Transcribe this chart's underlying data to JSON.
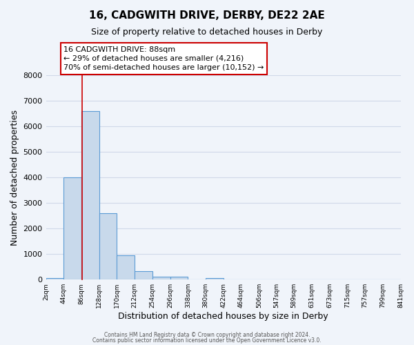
{
  "title": "16, CADGWITH DRIVE, DERBY, DE22 2AE",
  "subtitle": "Size of property relative to detached houses in Derby",
  "xlabel": "Distribution of detached houses by size in Derby",
  "ylabel": "Number of detached properties",
  "bar_values": [
    50,
    4000,
    6600,
    2600,
    950,
    320,
    120,
    120,
    0,
    60,
    0,
    0,
    0,
    0,
    0,
    0,
    0,
    0,
    0,
    0
  ],
  "bin_edges": [
    2,
    44,
    86,
    128,
    170,
    212,
    254,
    296,
    338,
    380,
    422,
    464,
    506,
    547,
    589,
    631,
    673,
    715,
    757,
    799,
    841
  ],
  "tick_labels": [
    "2sqm",
    "44sqm",
    "86sqm",
    "128sqm",
    "170sqm",
    "212sqm",
    "254sqm",
    "296sqm",
    "338sqm",
    "380sqm",
    "422sqm",
    "464sqm",
    "506sqm",
    "547sqm",
    "589sqm",
    "631sqm",
    "673sqm",
    "715sqm",
    "757sqm",
    "799sqm",
    "841sqm"
  ],
  "bar_color": "#c8d9eb",
  "bar_edge_color": "#5b9bd5",
  "property_line_x": 88,
  "ylim": [
    0,
    8000
  ],
  "yticks": [
    0,
    1000,
    2000,
    3000,
    4000,
    5000,
    6000,
    7000,
    8000
  ],
  "annotation_line1": "16 CADGWITH DRIVE: 88sqm",
  "annotation_line2": "← 29% of detached houses are smaller (4,216)",
  "annotation_line3": "70% of semi-detached houses are larger (10,152) →",
  "annotation_box_color": "#ffffff",
  "annotation_box_edge_color": "#cc0000",
  "annotation_line_color": "#cc0000",
  "grid_color": "#d0d8e8",
  "bg_color": "#f0f4fa",
  "footer_line1": "Contains HM Land Registry data © Crown copyright and database right 2024.",
  "footer_line2": "Contains public sector information licensed under the Open Government Licence v3.0."
}
